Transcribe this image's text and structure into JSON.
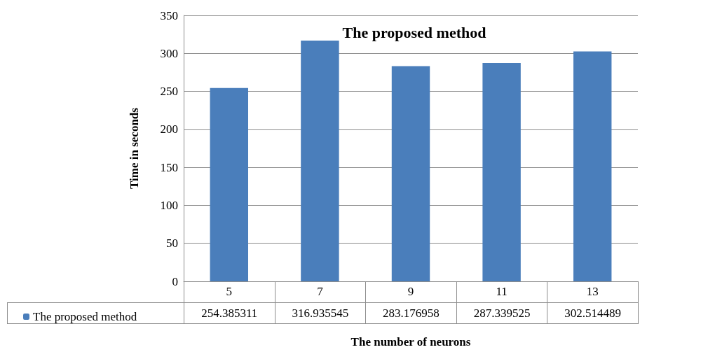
{
  "chart_data": {
    "type": "bar",
    "title": "The proposed method",
    "xlabel": "The number of neurons",
    "ylabel": "Time in seconds",
    "categories": [
      "5",
      "7",
      "9",
      "11",
      "13"
    ],
    "series": [
      {
        "name": "The proposed method",
        "color": "#4a7ebb",
        "values": [
          254.385311,
          316.935545,
          283.176958,
          287.339525,
          302.514489
        ]
      }
    ],
    "ylim": [
      0,
      350
    ],
    "yticks": [
      0,
      50,
      100,
      150,
      200,
      250,
      300,
      350
    ],
    "grid": "y",
    "legend": "bottom",
    "data_labels": true
  }
}
